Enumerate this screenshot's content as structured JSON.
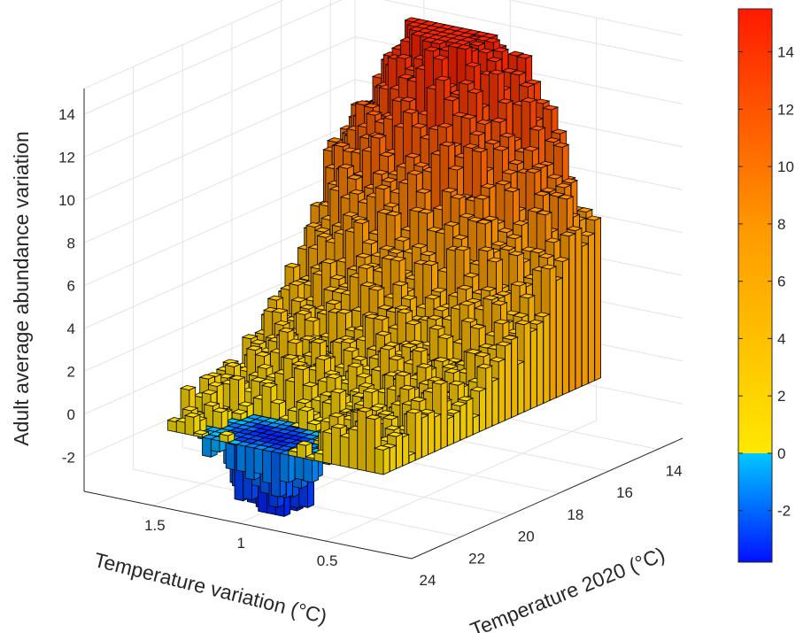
{
  "chart_data": {
    "type": "bar3",
    "zlabel": "Adult average abundance variation",
    "xlabel": "Temperature variation (°C)",
    "ylabel": "Temperature 2020 (°C)",
    "z_ticks": [
      -2,
      0,
      2,
      4,
      6,
      8,
      10,
      12,
      14
    ],
    "z_tick_labels": [
      "-2",
      "0",
      "2",
      "4",
      "6",
      "8",
      "10",
      "12",
      "14"
    ],
    "x_ticks": [
      1.5,
      1,
      0.5
    ],
    "x_tick_labels": [
      "1.5",
      "1",
      "0.5"
    ],
    "y_ticks": [
      24,
      22,
      20,
      18,
      16,
      14
    ],
    "y_tick_labels": [
      "24",
      "22",
      "20",
      "18",
      "16",
      "14"
    ],
    "zlim": [
      -3.8,
      15.5
    ],
    "grid": true,
    "colormap": "jet-like, blue (negative) to red (positive)",
    "colorbar": {
      "ticks": [
        -2,
        0,
        2,
        4,
        6,
        8,
        10,
        12,
        14
      ],
      "tick_labels": [
        "-2",
        "0",
        "2",
        "4",
        "6",
        "8",
        "10",
        "12",
        "14"
      ],
      "range": [
        -3.8,
        15.5
      ],
      "position": "right"
    },
    "surface_summary": {
      "peak_value": 15,
      "peak_region": "Temperature 2020 ≈ 14–17 °C, mid Temperature variation",
      "min_value": -3,
      "min_region": "Temperature 2020 ≈ 22–24 °C, Temperature variation ≈ 1",
      "plateau_value": 2,
      "plateau_region": "Temperature 2020 ≈ 24 °C, high Temperature variation"
    },
    "colors": {
      "positive_high": "#ff1a00",
      "positive_mid": "#ff9a00",
      "positive_low": "#ffe800",
      "negative_low": "#00c8ff",
      "negative_high": "#0010ff",
      "grid": "#e3e3e3",
      "axis": "#262626",
      "bar_edge": "#000000"
    }
  }
}
